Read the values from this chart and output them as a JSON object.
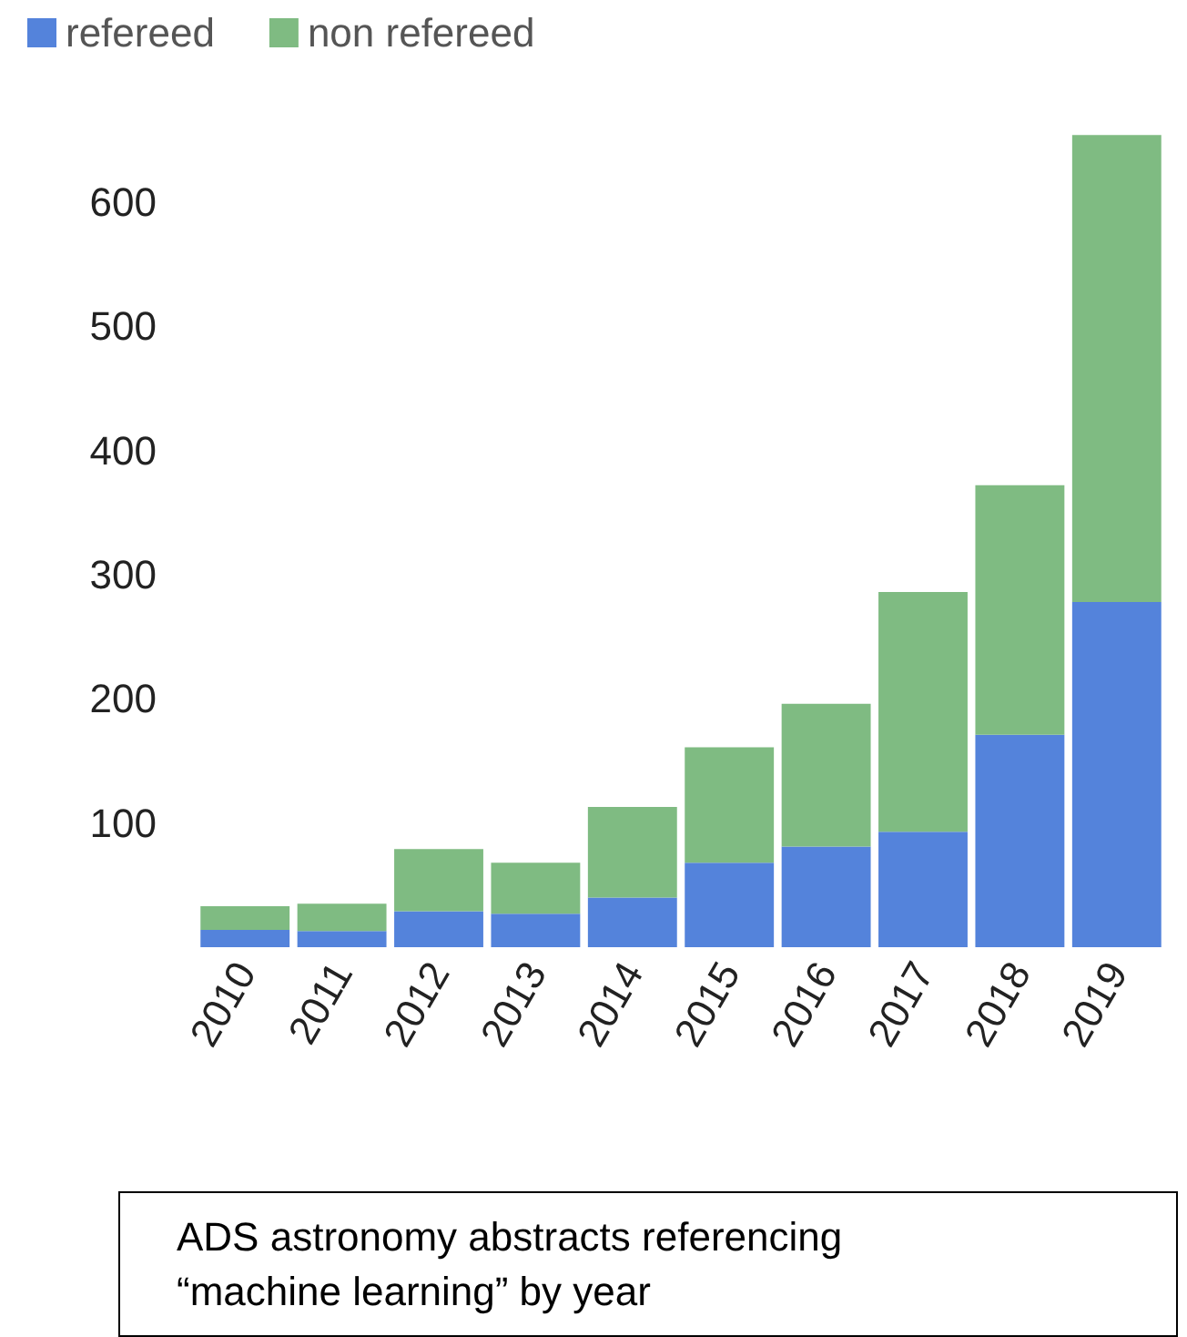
{
  "chart_data": {
    "type": "bar",
    "title": "ADS astronomy abstracts referencing\n“machine learning” by year",
    "categories": [
      "2010",
      "2011",
      "2012",
      "2013",
      "2014",
      "2015",
      "2016",
      "2017",
      "2018",
      "2019"
    ],
    "series": [
      {
        "name": "refereed",
        "color": "#5483db",
        "values": [
          14,
          13,
          29,
          27,
          40,
          68,
          81,
          93,
          171,
          278
        ]
      },
      {
        "name": "non refereed",
        "color": "#7fbb82",
        "values": [
          19,
          22,
          50,
          41,
          73,
          93,
          115,
          193,
          201,
          376
        ]
      }
    ],
    "stacked": true,
    "ylim": [
      0,
      660
    ],
    "yticks": [
      100,
      200,
      300,
      400,
      500,
      600
    ],
    "grid": false,
    "legend": "top left"
  }
}
